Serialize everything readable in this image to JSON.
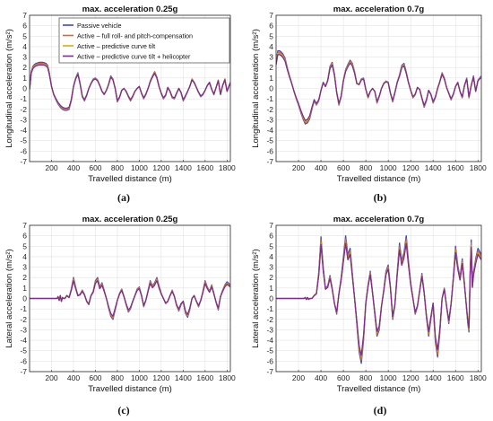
{
  "colors": {
    "passive": "#3b4cc0",
    "active_full": "#d9682a",
    "active_pred": "#c9b400",
    "active_heli": "#7a2c91",
    "grid": "#e3e3e3"
  },
  "chart_data": [
    {
      "type": "line",
      "id": "a",
      "title": "max. acceleration 0.25g",
      "xlabel": "Travelled distance (m)",
      "ylabel": "Longitudinal acceleration (m/s²)",
      "caption": "(a)",
      "grid": true,
      "legend": "top-left",
      "xlim": [
        0,
        1830
      ],
      "ylim": [
        -7,
        7
      ],
      "xticks": [
        200,
        400,
        600,
        800,
        1000,
        1200,
        1400,
        1600,
        1800
      ],
      "yticks": [
        -7,
        -6,
        -5,
        -4,
        -3,
        -2,
        -1,
        0,
        1,
        2,
        3,
        4,
        5,
        6,
        7
      ],
      "series": [
        {
          "name": "Passive vehicle",
          "color_key": "passive",
          "scale": 1.0,
          "x": [
            0,
            15,
            30,
            45,
            60,
            90,
            120,
            150,
            165,
            180,
            200,
            220,
            240,
            260,
            280,
            300,
            320,
            340,
            360,
            380,
            400,
            420,
            440,
            460,
            480,
            500,
            520,
            540,
            560,
            580,
            600,
            620,
            640,
            660,
            680,
            700,
            720,
            740,
            760,
            780,
            800,
            820,
            840,
            860,
            880,
            900,
            920,
            940,
            960,
            980,
            1000,
            1020,
            1040,
            1060,
            1080,
            1100,
            1120,
            1140,
            1160,
            1180,
            1200,
            1220,
            1240,
            1260,
            1280,
            1300,
            1320,
            1340,
            1360,
            1380,
            1400,
            1420,
            1440,
            1460,
            1480,
            1500,
            1520,
            1540,
            1560,
            1580,
            1600,
            1620,
            1640,
            1660,
            1680,
            1700,
            1720,
            1740,
            1760,
            1780,
            1800,
            1830
          ],
          "y": [
            -0.1,
            1.6,
            2.1,
            2.3,
            2.4,
            2.5,
            2.5,
            2.4,
            2.2,
            1.5,
            0.2,
            -0.6,
            -1.1,
            -1.5,
            -1.8,
            -2.0,
            -2.1,
            -2.1,
            -2.0,
            -1.2,
            0.2,
            1.0,
            1.5,
            0.5,
            -0.8,
            -1.2,
            -0.7,
            0.0,
            0.5,
            0.9,
            1.0,
            0.8,
            0.3,
            -0.3,
            -0.6,
            -0.2,
            0.4,
            1.2,
            0.9,
            0.0,
            -1.3,
            -0.9,
            -0.2,
            0.0,
            -0.3,
            -0.8,
            -1.2,
            -0.8,
            -0.3,
            0.0,
            0.2,
            -0.5,
            -1.0,
            -0.6,
            0.0,
            0.7,
            1.2,
            1.6,
            1.1,
            0.2,
            -0.5,
            -1.0,
            -0.7,
            0.1,
            -0.3,
            -0.9,
            -1.0,
            -0.5,
            0.0,
            -0.4,
            -1.2,
            -0.8,
            -0.3,
            0.2,
            0.9,
            0.6,
            0.1,
            -0.4,
            -0.8,
            -0.6,
            -0.2,
            0.3,
            0.6,
            -0.1,
            -0.6,
            0.1,
            0.8,
            -0.6,
            0.3,
            0.9,
            -0.3,
            0.6
          ]
        },
        {
          "name": "Active – full roll- and pitch-compensation",
          "color_key": "active_full",
          "scale": 0.96
        },
        {
          "name": "Active – predictive curve tilt",
          "color_key": "active_pred",
          "scale": 0.92
        },
        {
          "name": "Active – predictive curve tilt + helicopter",
          "color_key": "active_heli",
          "scale": 0.9
        }
      ]
    },
    {
      "type": "line",
      "id": "b",
      "title": "max. acceleration 0.7g",
      "xlabel": "Travelled distance (m)",
      "ylabel": "Longitudinal acceleration (m/s²)",
      "caption": "(b)",
      "grid": true,
      "xlim": [
        0,
        1830
      ],
      "ylim": [
        -7,
        7
      ],
      "xticks": [
        200,
        400,
        600,
        800,
        1000,
        1200,
        1400,
        1600,
        1800
      ],
      "yticks": [
        -7,
        -6,
        -5,
        -4,
        -3,
        -2,
        -1,
        0,
        1,
        2,
        3,
        4,
        5,
        6,
        7
      ],
      "series": [
        {
          "name": "Passive vehicle",
          "color_key": "passive",
          "scale": 1.0,
          "x": [
            0,
            15,
            30,
            45,
            60,
            80,
            100,
            120,
            140,
            160,
            180,
            200,
            220,
            240,
            260,
            280,
            300,
            320,
            340,
            360,
            380,
            400,
            420,
            440,
            460,
            480,
            500,
            520,
            540,
            560,
            580,
            600,
            620,
            640,
            660,
            680,
            700,
            720,
            740,
            760,
            780,
            800,
            820,
            840,
            860,
            880,
            900,
            920,
            940,
            960,
            980,
            1000,
            1020,
            1040,
            1060,
            1080,
            1100,
            1120,
            1140,
            1160,
            1180,
            1200,
            1220,
            1240,
            1260,
            1280,
            1300,
            1320,
            1340,
            1360,
            1380,
            1400,
            1420,
            1440,
            1460,
            1480,
            1500,
            1520,
            1540,
            1560,
            1580,
            1600,
            1620,
            1640,
            1660,
            1680,
            1700,
            1720,
            1740,
            1760,
            1780,
            1800,
            1830
          ],
          "y": [
            2.5,
            3.6,
            3.6,
            3.5,
            3.3,
            2.9,
            2.0,
            1.2,
            0.5,
            -0.3,
            -1.0,
            -1.6,
            -2.3,
            -2.9,
            -3.4,
            -3.3,
            -2.9,
            -2.0,
            -1.2,
            -1.6,
            -1.2,
            -0.2,
            0.6,
            0.2,
            0.8,
            2.1,
            2.5,
            1.4,
            -0.4,
            -1.6,
            -0.8,
            0.8,
            1.8,
            2.3,
            2.7,
            2.4,
            1.6,
            0.5,
            0.4,
            0.9,
            1.0,
            -0.1,
            -0.9,
            -0.3,
            0.0,
            -0.3,
            -1.4,
            -0.8,
            0.0,
            0.5,
            0.7,
            0.6,
            -0.5,
            -1.3,
            -0.4,
            0.6,
            1.3,
            2.2,
            2.4,
            1.6,
            0.6,
            -0.2,
            -0.9,
            -0.6,
            0.1,
            -0.1,
            -1.0,
            -1.8,
            -1.2,
            -0.2,
            -0.6,
            -1.4,
            -0.9,
            0.0,
            0.7,
            1.5,
            1.0,
            0.1,
            -0.5,
            -1.1,
            -0.6,
            0.2,
            0.6,
            -0.3,
            -0.9,
            0.3,
            1.0,
            -0.9,
            0.3,
            1.2,
            -0.3,
            0.8,
            1.2
          ]
        },
        {
          "name": "Active – full roll- and pitch-compensation",
          "color_key": "active_full",
          "scale": 0.96
        },
        {
          "name": "Active – predictive curve tilt",
          "color_key": "active_pred",
          "scale": 0.93
        },
        {
          "name": "Active – predictive curve tilt + helicopter",
          "color_key": "active_heli",
          "scale": 0.9
        }
      ]
    },
    {
      "type": "line",
      "id": "c",
      "title": "max. acceleration 0.25g",
      "xlabel": "Travelled distance (m)",
      "ylabel": "Lateral acceleration (m/s²)",
      "caption": "(c)",
      "grid": true,
      "xlim": [
        0,
        1830
      ],
      "ylim": [
        -7,
        7
      ],
      "xticks": [
        200,
        400,
        600,
        800,
        1000,
        1200,
        1400,
        1600,
        1800
      ],
      "yticks": [
        -7,
        -6,
        -5,
        -4,
        -3,
        -2,
        -1,
        0,
        1,
        2,
        3,
        4,
        5,
        6,
        7
      ],
      "series": [
        {
          "name": "Passive vehicle",
          "color_key": "passive",
          "scale": 1.0,
          "x": [
            0,
            100,
            200,
            250,
            260,
            270,
            280,
            290,
            300,
            310,
            320,
            340,
            360,
            380,
            400,
            420,
            440,
            460,
            480,
            500,
            520,
            540,
            560,
            580,
            600,
            620,
            640,
            660,
            680,
            700,
            720,
            740,
            760,
            780,
            800,
            820,
            840,
            860,
            880,
            900,
            920,
            940,
            960,
            980,
            1000,
            1020,
            1040,
            1060,
            1080,
            1100,
            1120,
            1140,
            1160,
            1180,
            1200,
            1220,
            1240,
            1260,
            1280,
            1300,
            1320,
            1340,
            1360,
            1380,
            1400,
            1420,
            1440,
            1460,
            1480,
            1500,
            1520,
            1540,
            1560,
            1580,
            1600,
            1620,
            1640,
            1660,
            1680,
            1700,
            1720,
            1740,
            1760,
            1780,
            1800,
            1830
          ],
          "y": [
            0.0,
            0.0,
            0.0,
            0.0,
            0.2,
            -0.2,
            0.3,
            -0.3,
            0.1,
            0.0,
            0.0,
            0.3,
            0.1,
            0.9,
            2.0,
            1.1,
            0.3,
            0.4,
            0.8,
            0.4,
            -0.3,
            -0.6,
            0.3,
            0.7,
            1.7,
            2.0,
            1.1,
            1.5,
            0.8,
            0.0,
            -0.9,
            -1.7,
            -2.0,
            -1.1,
            -0.2,
            0.5,
            0.9,
            0.2,
            -0.6,
            -1.3,
            -1.0,
            -0.3,
            0.3,
            0.9,
            1.1,
            0.3,
            -0.8,
            -0.2,
            0.8,
            1.7,
            1.2,
            1.5,
            2.0,
            1.2,
            0.5,
            0.0,
            -0.5,
            -0.3,
            0.3,
            0.8,
            0.2,
            -0.7,
            -1.2,
            -0.6,
            -0.3,
            -1.4,
            -1.8,
            -1.1,
            0.0,
            0.3,
            -0.3,
            -0.8,
            -0.2,
            0.7,
            1.7,
            1.1,
            0.7,
            1.3,
            0.5,
            -0.4,
            -1.1,
            0.2,
            0.8,
            1.3,
            1.6,
            1.3
          ]
        },
        {
          "name": "Active – full roll- and pitch-compensation",
          "color_key": "active_full",
          "scale": 0.94
        },
        {
          "name": "Active – predictive curve tilt",
          "color_key": "active_pred",
          "scale": 0.88
        },
        {
          "name": "Active – predictive curve tilt + helicopter",
          "color_key": "active_heli",
          "scale": 0.85
        }
      ]
    },
    {
      "type": "line",
      "id": "d",
      "title": "max. acceleration 0.7g",
      "xlabel": "Travelled distance (m)",
      "ylabel": "Lateral acceleration (m/s²)",
      "caption": "(d)",
      "grid": true,
      "xlim": [
        0,
        1830
      ],
      "ylim": [
        -7,
        7
      ],
      "xticks": [
        200,
        400,
        600,
        800,
        1000,
        1200,
        1400,
        1600,
        1800
      ],
      "yticks": [
        -7,
        -6,
        -5,
        -4,
        -3,
        -2,
        -1,
        0,
        1,
        2,
        3,
        4,
        5,
        6,
        7
      ],
      "series": [
        {
          "name": "Passive vehicle",
          "color_key": "passive",
          "scale": 1.0,
          "x": [
            0,
            100,
            200,
            250,
            260,
            270,
            280,
            290,
            300,
            320,
            340,
            360,
            380,
            400,
            420,
            440,
            460,
            480,
            500,
            520,
            540,
            560,
            580,
            600,
            620,
            640,
            660,
            680,
            700,
            720,
            740,
            760,
            780,
            800,
            820,
            840,
            860,
            880,
            900,
            920,
            940,
            960,
            980,
            1000,
            1020,
            1040,
            1060,
            1080,
            1100,
            1120,
            1140,
            1160,
            1180,
            1200,
            1220,
            1240,
            1260,
            1280,
            1300,
            1320,
            1340,
            1360,
            1380,
            1400,
            1420,
            1440,
            1460,
            1480,
            1500,
            1520,
            1540,
            1560,
            1580,
            1600,
            1620,
            1640,
            1660,
            1680,
            1700,
            1710,
            1720,
            1730,
            1740,
            1750,
            1760,
            1780,
            1800,
            1830
          ],
          "y": [
            0.0,
            0.0,
            0.0,
            0.0,
            0.1,
            -0.1,
            0.1,
            -0.1,
            0.0,
            0.0,
            0.3,
            0.5,
            2.5,
            5.9,
            3.0,
            1.0,
            1.2,
            2.2,
            1.0,
            -0.5,
            -1.5,
            0.5,
            2.0,
            4.0,
            6.0,
            4.2,
            4.8,
            2.4,
            0.0,
            -2.5,
            -5.1,
            -6.2,
            -4.0,
            -0.5,
            1.3,
            2.6,
            0.6,
            -1.5,
            -3.6,
            -3.0,
            -0.8,
            0.8,
            2.6,
            3.2,
            1.1,
            -2.0,
            -0.6,
            2.5,
            5.3,
            3.6,
            4.4,
            6.0,
            3.6,
            1.5,
            0.0,
            -1.5,
            -0.8,
            0.8,
            2.4,
            0.6,
            -1.8,
            -3.6,
            -2.0,
            -0.5,
            -4.2,
            -5.6,
            -3.3,
            0.0,
            1.0,
            -0.8,
            -2.4,
            -0.6,
            2.0,
            5.0,
            3.2,
            2.0,
            3.8,
            1.4,
            -1.2,
            -2.5,
            -3.2,
            2.5,
            5.6,
            1.2,
            2.5,
            3.8,
            4.8,
            4.2
          ]
        },
        {
          "name": "Active – full roll- and pitch-compensation",
          "color_key": "active_full",
          "scale": 0.95
        },
        {
          "name": "Active – predictive curve tilt",
          "color_key": "active_pred",
          "scale": 0.9
        },
        {
          "name": "Active – predictive curve tilt + helicopter",
          "color_key": "active_heli",
          "scale": 0.88
        }
      ]
    }
  ]
}
